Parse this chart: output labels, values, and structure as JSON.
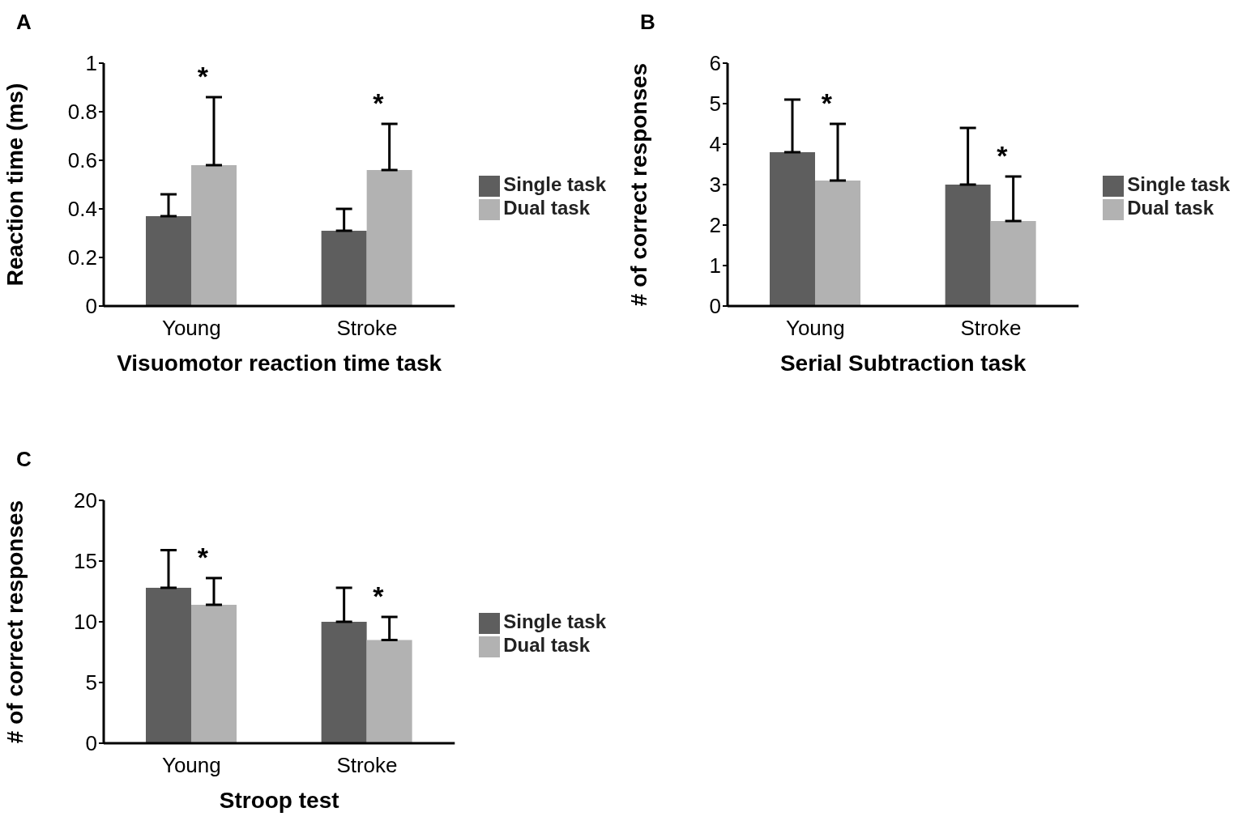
{
  "chart_data": [
    {
      "type": "bar",
      "title": "A",
      "xlabel": "Visuomotor reaction time task",
      "ylabel": "Reaction time (ms)",
      "categories": [
        "Young",
        "Stroke"
      ],
      "series": [
        {
          "name": "Single task",
          "color": "#5e5e5e",
          "values": [
            0.37,
            0.31
          ],
          "errors": [
            [
              0.37,
              0.46
            ],
            [
              0.31,
              0.4
            ]
          ]
        },
        {
          "name": "Dual task",
          "color": "#b2b2b2",
          "values": [
            0.58,
            0.56
          ],
          "errors": [
            [
              0.58,
              0.86
            ],
            [
              0.56,
              0.75
            ]
          ]
        }
      ],
      "ylim": [
        0,
        1
      ],
      "yticks": [
        0,
        0.2,
        0.4,
        0.6,
        0.8,
        1
      ],
      "grid": false,
      "legend": "right",
      "annotations": [
        "*",
        "*"
      ]
    },
    {
      "type": "bar",
      "title": "B",
      "xlabel": "Serial Subtraction task",
      "ylabel": "# of correct responses",
      "categories": [
        "Young",
        "Stroke"
      ],
      "series": [
        {
          "name": "Single task",
          "color": "#5e5e5e",
          "values": [
            3.8,
            3.0
          ],
          "errors": [
            [
              3.8,
              5.1
            ],
            [
              3.0,
              4.4
            ]
          ]
        },
        {
          "name": "Dual task",
          "color": "#b2b2b2",
          "values": [
            3.1,
            2.1
          ],
          "errors": [
            [
              3.1,
              4.5
            ],
            [
              2.1,
              3.2
            ]
          ]
        }
      ],
      "ylim": [
        0,
        6
      ],
      "yticks": [
        0,
        1,
        2,
        3,
        4,
        5,
        6
      ],
      "grid": false,
      "legend": "right",
      "annotations": [
        "*",
        "*"
      ]
    },
    {
      "type": "bar",
      "title": "C",
      "xlabel": "Stroop test",
      "ylabel": "# of correct responses",
      "categories": [
        "Young",
        "Stroke"
      ],
      "series": [
        {
          "name": "Single task",
          "color": "#5e5e5e",
          "values": [
            12.8,
            10.0
          ],
          "errors": [
            [
              12.8,
              15.9
            ],
            [
              10.0,
              12.8
            ]
          ]
        },
        {
          "name": "Dual task",
          "color": "#b2b2b2",
          "values": [
            11.4,
            8.5
          ],
          "errors": [
            [
              11.4,
              13.6
            ],
            [
              8.5,
              10.4
            ]
          ]
        }
      ],
      "ylim": [
        0,
        20
      ],
      "yticks": [
        0,
        5,
        10,
        15,
        20
      ],
      "grid": false,
      "legend": "right",
      "annotations": [
        "*",
        "*"
      ]
    }
  ]
}
